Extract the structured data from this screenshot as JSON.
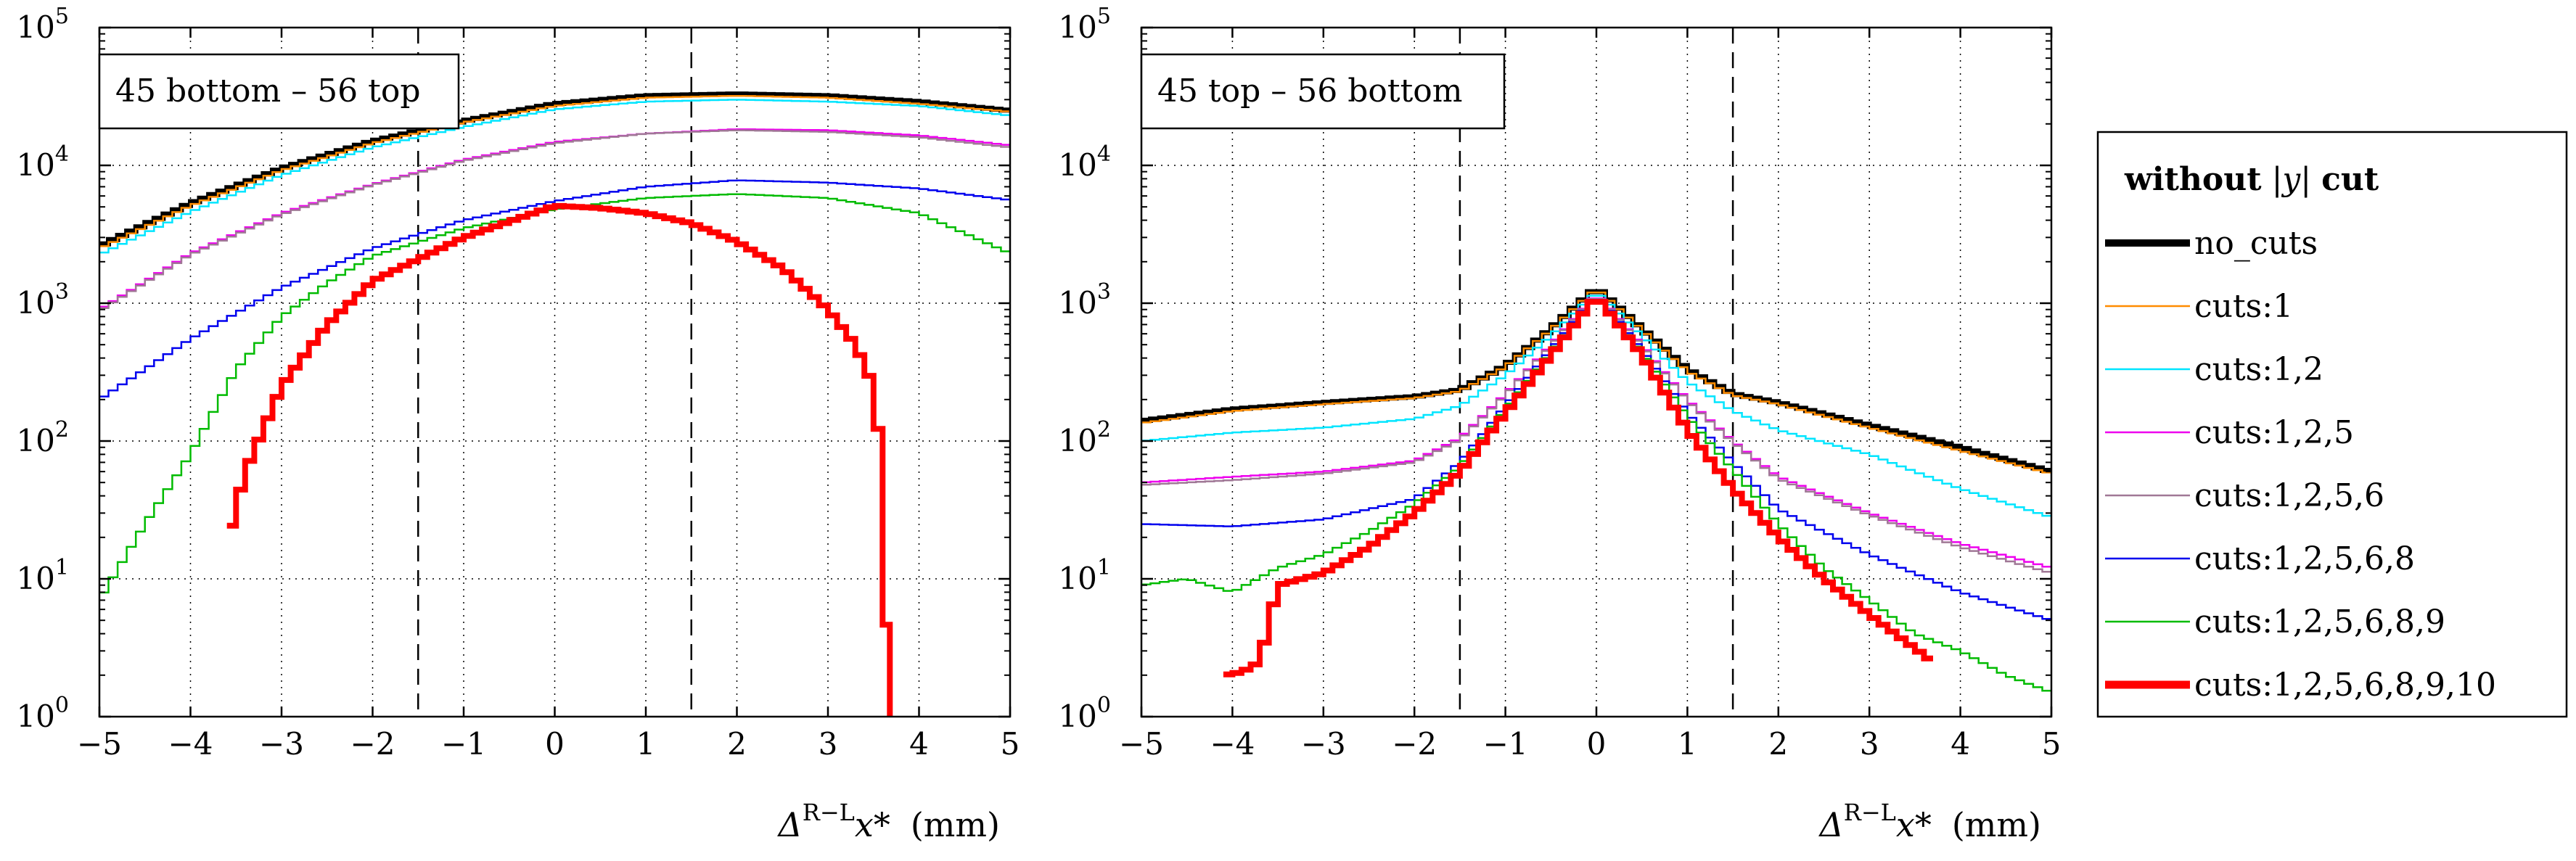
{
  "chart_data": [
    {
      "type": "line",
      "step": true,
      "title": "45 bottom – 56 top",
      "xlabel_prefix": "Δ",
      "xlabel_sup": "R−L",
      "xlabel_var": "x*",
      "xlabel_unit": "(mm)",
      "xlim": [
        -5,
        5
      ],
      "ylim": [
        1,
        100000
      ],
      "yscale": "log",
      "x_ticks": [
        "−5",
        "−4",
        "−3",
        "−2",
        "−1",
        "0",
        "1",
        "2",
        "3",
        "4",
        "5"
      ],
      "y_ticks": [
        {
          "base": "10",
          "exp": "0"
        },
        {
          "base": "10",
          "exp": "1"
        },
        {
          "base": "10",
          "exp": "2"
        },
        {
          "base": "10",
          "exp": "3"
        },
        {
          "base": "10",
          "exp": "4"
        },
        {
          "base": "10",
          "exp": "5"
        }
      ],
      "vlines": [
        -1.5,
        1.5
      ],
      "grid": true,
      "series": [
        {
          "name": "no_cuts",
          "anchors": [
            [
              -5,
              2600
            ],
            [
              -4,
              5300
            ],
            [
              -3,
              9500
            ],
            [
              -2,
              15000
            ],
            [
              -1,
              21000
            ],
            [
              0,
              28000
            ],
            [
              1,
              32000
            ],
            [
              2,
              33000
            ],
            [
              3,
              32000
            ],
            [
              4,
              29000
            ],
            [
              5,
              25000
            ]
          ]
        },
        {
          "name": "cuts:1",
          "anchors": [
            [
              -5,
              2500
            ],
            [
              -4,
              5100
            ],
            [
              -3,
              9200
            ],
            [
              -2,
              14500
            ],
            [
              -1,
              20500
            ],
            [
              0,
              27000
            ],
            [
              1,
              31000
            ],
            [
              2,
              32000
            ],
            [
              3,
              31000
            ],
            [
              4,
              28000
            ],
            [
              5,
              24500
            ]
          ]
        },
        {
          "name": "cuts:1,2",
          "anchors": [
            [
              -5,
              2250
            ],
            [
              -4,
              4600
            ],
            [
              -3,
              8500
            ],
            [
              -2,
              13500
            ],
            [
              -1,
              19000
            ],
            [
              0,
              25500
            ],
            [
              1,
              29000
            ],
            [
              2,
              30000
            ],
            [
              3,
              29000
            ],
            [
              4,
              27000
            ],
            [
              5,
              23000
            ]
          ]
        },
        {
          "name": "cuts:1,2,5",
          "anchors": [
            [
              -5,
              900
            ],
            [
              -4,
              2300
            ],
            [
              -3,
              4500
            ],
            [
              -2,
              7300
            ],
            [
              -1,
              11000
            ],
            [
              0,
              14800
            ],
            [
              1,
              17000
            ],
            [
              2,
              18300
            ],
            [
              3,
              18000
            ],
            [
              4,
              16500
            ],
            [
              5,
              14000
            ]
          ]
        },
        {
          "name": "cuts:1,2,5,6",
          "anchors": [
            [
              -5,
              880
            ],
            [
              -4,
              2250
            ],
            [
              -3,
              4400
            ],
            [
              -2,
              7200
            ],
            [
              -1,
              10800
            ],
            [
              0,
              14500
            ],
            [
              1,
              17000
            ],
            [
              2,
              18000
            ],
            [
              3,
              17500
            ],
            [
              4,
              16000
            ],
            [
              5,
              13500
            ]
          ]
        },
        {
          "name": "cuts:1,2,5,6,8",
          "anchors": [
            [
              -5,
              200
            ],
            [
              -4,
              550
            ],
            [
              -3,
              1300
            ],
            [
              -2,
              2500
            ],
            [
              -1,
              4000
            ],
            [
              0,
              5500
            ],
            [
              1,
              7000
            ],
            [
              2,
              7800
            ],
            [
              3,
              7500
            ],
            [
              4,
              6800
            ],
            [
              5,
              5600
            ]
          ]
        },
        {
          "name": "cuts:1,2,5,6,8,9",
          "anchors": [
            [
              -5,
              7
            ],
            [
              -4.5,
              25
            ],
            [
              -4,
              80
            ],
            [
              -3.5,
              330
            ],
            [
              -3,
              800
            ],
            [
              -2.5,
              1400
            ],
            [
              -2,
              2200
            ],
            [
              -1,
              3500
            ],
            [
              0,
              4800
            ],
            [
              1,
              5800
            ],
            [
              2,
              6200
            ],
            [
              3,
              5800
            ],
            [
              4,
              4500
            ],
            [
              5,
              2300
            ]
          ]
        },
        {
          "name": "cuts:1,2,5,6,8,9,10",
          "anchors": [
            [
              -3.6,
              18
            ],
            [
              -3.4,
              60
            ],
            [
              -3,
              250
            ],
            [
              -2.5,
              700
            ],
            [
              -2,
              1450
            ],
            [
              -1,
              3000
            ],
            [
              0,
              5100
            ],
            [
              0.5,
              4900
            ],
            [
              1,
              4500
            ],
            [
              1.5,
              3800
            ],
            [
              2,
              2800
            ],
            [
              2.5,
              1800
            ],
            [
              3,
              900
            ],
            [
              3.3,
              500
            ],
            [
              3.5,
              250
            ],
            [
              3.6,
              60
            ],
            [
              3.68,
              1
            ]
          ]
        }
      ]
    },
    {
      "type": "line",
      "step": true,
      "title": "45 top – 56 bottom",
      "xlabel_prefix": "Δ",
      "xlabel_sup": "R−L",
      "xlabel_var": "x*",
      "xlabel_unit": "(mm)",
      "xlim": [
        -5,
        5
      ],
      "ylim": [
        1,
        100000
      ],
      "yscale": "log",
      "x_ticks": [
        "−5",
        "−4",
        "−3",
        "−2",
        "−1",
        "0",
        "1",
        "2",
        "3",
        "4",
        "5"
      ],
      "y_ticks": [
        {
          "base": "10",
          "exp": "0"
        },
        {
          "base": "10",
          "exp": "1"
        },
        {
          "base": "10",
          "exp": "2"
        },
        {
          "base": "10",
          "exp": "3"
        },
        {
          "base": "10",
          "exp": "4"
        },
        {
          "base": "10",
          "exp": "5"
        }
      ],
      "vlines": [
        -1.5,
        1.5
      ],
      "grid": true,
      "series": [
        {
          "name": "no_cuts",
          "anchors": [
            [
              -5,
              140
            ],
            [
              -4,
              170
            ],
            [
              -3,
              190
            ],
            [
              -2,
              210
            ],
            [
              -1.5,
              235
            ],
            [
              -1,
              350
            ],
            [
              -0.5,
              650
            ],
            [
              0,
              1300
            ],
            [
              0.5,
              650
            ],
            [
              1,
              330
            ],
            [
              1.5,
              220
            ],
            [
              2,
              190
            ],
            [
              3,
              130
            ],
            [
              4,
              90
            ],
            [
              5,
              60
            ]
          ]
        },
        {
          "name": "cuts:1",
          "anchors": [
            [
              -5,
              135
            ],
            [
              -4,
              165
            ],
            [
              -3,
              185
            ],
            [
              -2,
              205
            ],
            [
              -1.5,
              230
            ],
            [
              -1,
              345
            ],
            [
              -0.5,
              640
            ],
            [
              0,
              1280
            ],
            [
              0.5,
              640
            ],
            [
              1,
              320
            ],
            [
              1.5,
              215
            ],
            [
              2,
              185
            ],
            [
              3,
              125
            ],
            [
              4,
              85
            ],
            [
              5,
              58
            ]
          ]
        },
        {
          "name": "cuts:1,2",
          "anchors": [
            [
              -5,
              100
            ],
            [
              -4,
              115
            ],
            [
              -3,
              125
            ],
            [
              -2,
              145
            ],
            [
              -1.5,
              180
            ],
            [
              -1,
              300
            ],
            [
              -0.5,
              580
            ],
            [
              0,
              1220
            ],
            [
              0.5,
              580
            ],
            [
              1,
              270
            ],
            [
              1.5,
              165
            ],
            [
              2,
              120
            ],
            [
              3,
              80
            ],
            [
              4,
              45
            ],
            [
              5,
              28
            ]
          ]
        },
        {
          "name": "cuts:1,2,5",
          "anchors": [
            [
              -5,
              50
            ],
            [
              -4,
              55
            ],
            [
              -3,
              60
            ],
            [
              -2,
              72
            ],
            [
              -1.5,
              105
            ],
            [
              -1,
              220
            ],
            [
              -0.5,
              500
            ],
            [
              0,
              1180
            ],
            [
              0.5,
              500
            ],
            [
              1,
              200
            ],
            [
              1.5,
              100
            ],
            [
              2,
              55
            ],
            [
              3,
              30
            ],
            [
              4,
              18
            ],
            [
              5,
              12
            ]
          ]
        },
        {
          "name": "cuts:1,2,5,6",
          "anchors": [
            [
              -5,
              48
            ],
            [
              -4,
              52
            ],
            [
              -3,
              58
            ],
            [
              -2,
              70
            ],
            [
              -1.5,
              102
            ],
            [
              -1,
              215
            ],
            [
              -0.5,
              490
            ],
            [
              0,
              1170
            ],
            [
              0.5,
              490
            ],
            [
              1,
              195
            ],
            [
              1.5,
              98
            ],
            [
              2,
              53
            ],
            [
              3,
              29
            ],
            [
              4,
              17
            ],
            [
              5,
              11
            ]
          ]
        },
        {
          "name": "cuts:1,2,5,6,8",
          "anchors": [
            [
              -5,
              25
            ],
            [
              -4,
              24
            ],
            [
              -3,
              27
            ],
            [
              -2,
              38
            ],
            [
              -1.5,
              70
            ],
            [
              -1,
              180
            ],
            [
              -0.5,
              460
            ],
            [
              0,
              1160
            ],
            [
              0.5,
              460
            ],
            [
              1,
              160
            ],
            [
              1.5,
              70
            ],
            [
              2,
              32
            ],
            [
              3,
              15
            ],
            [
              4,
              8
            ],
            [
              5,
              5
            ]
          ]
        },
        {
          "name": "cuts:1,2,5,6,8,9",
          "anchors": [
            [
              -5,
              9
            ],
            [
              -4.5,
              10
            ],
            [
              -4,
              8
            ],
            [
              -3.5,
              12
            ],
            [
              -3,
              15
            ],
            [
              -2.5,
              22
            ],
            [
              -2,
              35
            ],
            [
              -1.5,
              65
            ],
            [
              -1,
              170
            ],
            [
              -0.5,
              440
            ],
            [
              0,
              1150
            ],
            [
              0.5,
              440
            ],
            [
              1,
              150
            ],
            [
              1.5,
              62
            ],
            [
              2,
              25
            ],
            [
              2.5,
              12
            ],
            [
              3,
              7
            ],
            [
              3.5,
              4
            ],
            [
              4,
              3
            ],
            [
              4.5,
              2
            ],
            [
              5,
              1.5
            ]
          ]
        },
        {
          "name": "cuts:1,2,5,6,8,9,10",
          "anchors": [
            [
              -4.1,
              2
            ],
            [
              -3.9,
              2.1
            ],
            [
              -3.7,
              2.5
            ],
            [
              -3.5,
              9
            ],
            [
              -3,
              11
            ],
            [
              -2.5,
              17
            ],
            [
              -2,
              30
            ],
            [
              -1.5,
              60
            ],
            [
              -1,
              160
            ],
            [
              -0.5,
              420
            ],
            [
              0,
              1130
            ],
            [
              0.5,
              420
            ],
            [
              1,
              120
            ],
            [
              1.5,
              45
            ],
            [
              2,
              20
            ],
            [
              2.5,
              10
            ],
            [
              3,
              5.5
            ],
            [
              3.4,
              3.5
            ],
            [
              3.7,
              2.5
            ]
          ]
        }
      ]
    }
  ],
  "legend": {
    "title_bold": "without",
    "title_var": "|y|",
    "title_bold2": "cut",
    "entries": [
      {
        "label": "no_cuts",
        "color": "#000000",
        "width": 10
      },
      {
        "label": "cuts:1",
        "color": "#ff8c00",
        "width": 2.5
      },
      {
        "label": "cuts:1,2",
        "color": "#00e5ff",
        "width": 2.5
      },
      {
        "label": "cuts:1,2,5",
        "color": "#ee00ee",
        "width": 2.5
      },
      {
        "label": "cuts:1,2,5,6",
        "color": "#a07896",
        "width": 2.5
      },
      {
        "label": "cuts:1,2,5,6,8",
        "color": "#0000ee",
        "width": 2.5
      },
      {
        "label": "cuts:1,2,5,6,8,9",
        "color": "#00bb00",
        "width": 2.5
      },
      {
        "label": "cuts:1,2,5,6,8,9,10",
        "color": "#ff0000",
        "width": 11
      }
    ]
  }
}
